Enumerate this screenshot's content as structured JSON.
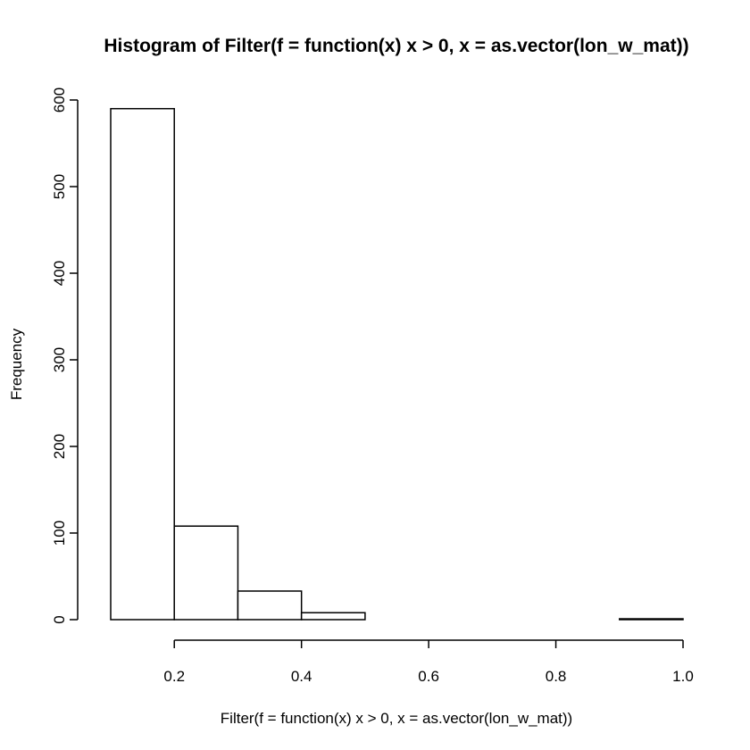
{
  "chart_data": {
    "type": "bar",
    "title": "Histogram of Filter(f = function(x) x > 0, x = as.vector(lon_w_mat))",
    "xlabel": "Filter(f = function(x) x > 0, x = as.vector(lon_w_mat))",
    "ylabel": "Frequency",
    "bins": [
      {
        "start": 0.1,
        "end": 0.2,
        "value": 590
      },
      {
        "start": 0.2,
        "end": 0.3,
        "value": 108
      },
      {
        "start": 0.3,
        "end": 0.4,
        "value": 33
      },
      {
        "start": 0.4,
        "end": 0.5,
        "value": 8
      },
      {
        "start": 0.5,
        "end": 0.6,
        "value": 0
      },
      {
        "start": 0.6,
        "end": 0.7,
        "value": 0
      },
      {
        "start": 0.7,
        "end": 0.8,
        "value": 0
      },
      {
        "start": 0.8,
        "end": 0.9,
        "value": 0
      },
      {
        "start": 0.9,
        "end": 1.0,
        "value": 1
      }
    ],
    "xlim": [
      0.1,
      1.0
    ],
    "ylim": [
      0,
      600
    ],
    "x_ticks": [
      0.2,
      0.4,
      0.6,
      0.8,
      1.0
    ],
    "x_tick_labels": [
      "0.2",
      "0.4",
      "0.6",
      "0.8",
      "1.0"
    ],
    "y_ticks": [
      0,
      100,
      200,
      300,
      400,
      500,
      600
    ],
    "y_tick_labels": [
      "0",
      "100",
      "200",
      "300",
      "400",
      "500",
      "600"
    ],
    "grid": false,
    "bar_fill": "#ffffff",
    "bar_stroke": "#000000"
  }
}
